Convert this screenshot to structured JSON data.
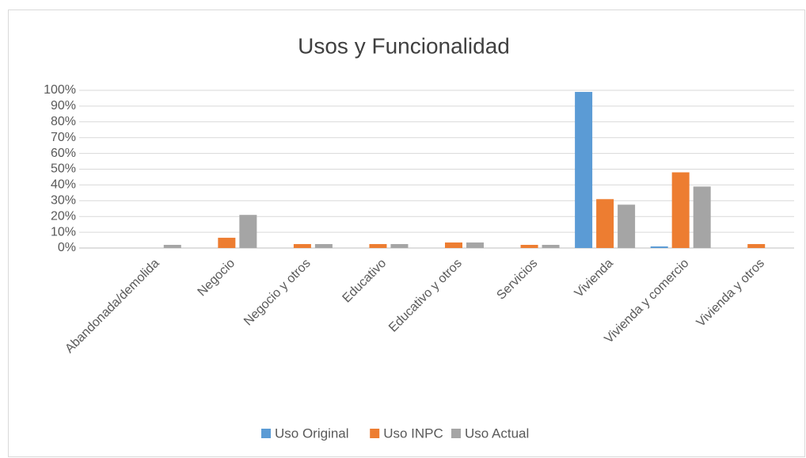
{
  "chart_data": {
    "type": "bar",
    "title": "Usos y Funcionalidad",
    "categories": [
      "Abandonada/demolida",
      "Negocio",
      "Negocio y otros",
      "Educativo",
      "Educativo y otros",
      "Servicios",
      "Vivienda",
      "Vivienda y comercio",
      "Vivienda y otros"
    ],
    "series": [
      {
        "name": "Uso Original",
        "color": "#5b9bd5",
        "values": [
          0,
          0,
          0,
          0,
          0,
          0,
          99,
          1,
          0
        ]
      },
      {
        "name": "Uso INPC",
        "color": "#ed7d31",
        "values": [
          0,
          6.5,
          2.5,
          2.5,
          3.5,
          2,
          31,
          48,
          2.5
        ]
      },
      {
        "name": "Uso Actual",
        "color": "#a5a5a5",
        "values": [
          2,
          21,
          2.5,
          2.5,
          3.5,
          2,
          27.5,
          39,
          0
        ]
      }
    ],
    "ylim": [
      0,
      100
    ],
    "yticks": [
      {
        "value": 0,
        "label": "0%"
      },
      {
        "value": 10,
        "label": "10%"
      },
      {
        "value": 20,
        "label": "20%"
      },
      {
        "value": 30,
        "label": "30%"
      },
      {
        "value": 40,
        "label": "40%"
      },
      {
        "value": 50,
        "label": "50%"
      },
      {
        "value": 60,
        "label": "60%"
      },
      {
        "value": 70,
        "label": "70%"
      },
      {
        "value": 80,
        "label": "80%"
      },
      {
        "value": 90,
        "label": "90%"
      },
      {
        "value": 100,
        "label": "100%"
      }
    ],
    "grid": true,
    "legend": "bottom"
  }
}
